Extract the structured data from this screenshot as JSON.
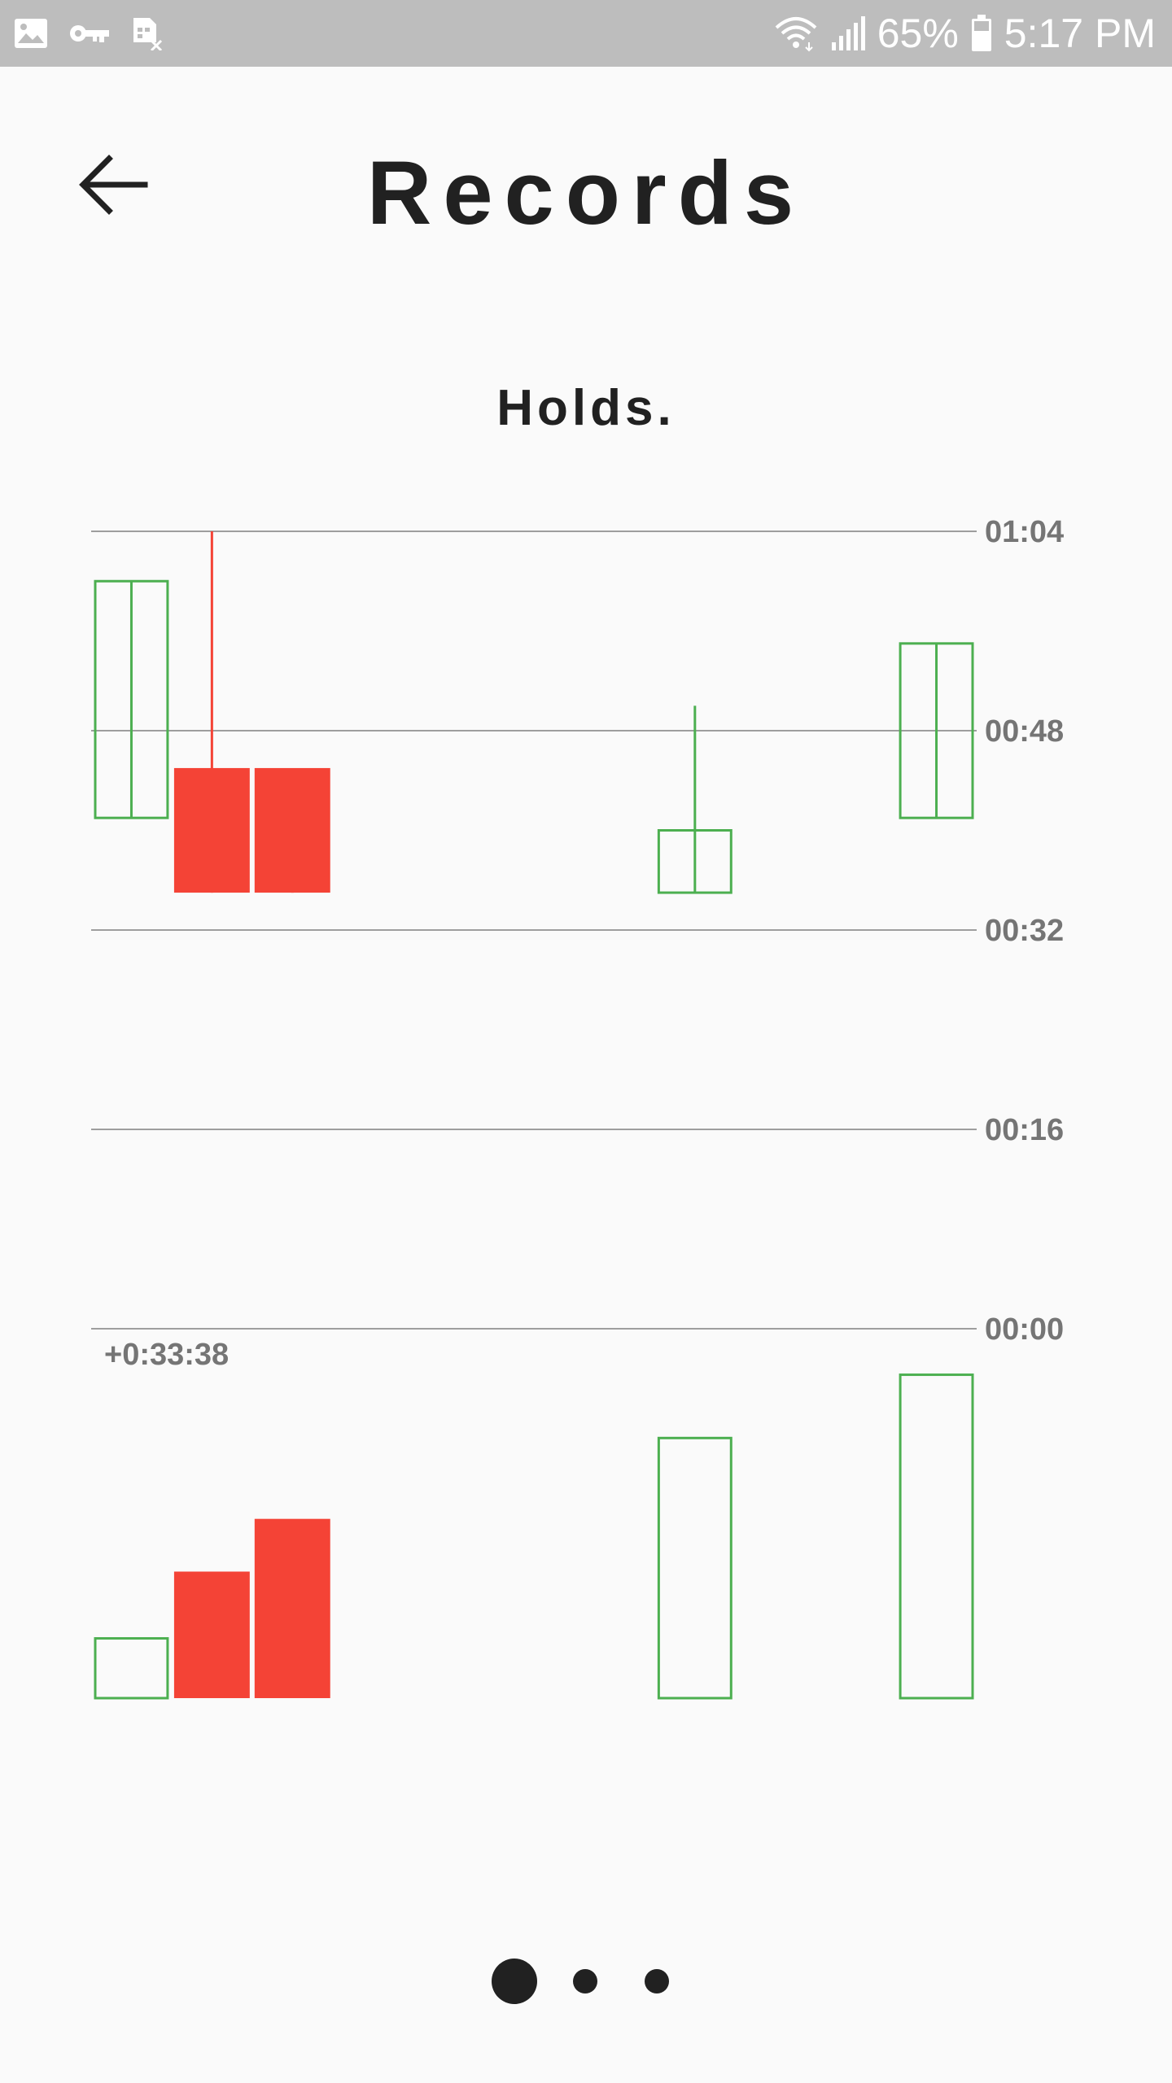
{
  "status_bar": {
    "battery": "65%",
    "time": "5:17 PM",
    "left_icons": [
      "image-icon",
      "key-icon",
      "sim-card-icon"
    ],
    "right_icons": [
      "wifi-icon",
      "signal-icon",
      "battery-icon"
    ]
  },
  "app_bar": {
    "back_icon": "arrow-back-icon",
    "title": "Records"
  },
  "chart_title": "Holds.",
  "colors": {
    "increase": "#4caf50",
    "decrease": "#f44336",
    "grid": "#9e9e9e",
    "axis_text": "#757575",
    "title_text": "#212121",
    "status_bar": "#bdbdbd"
  },
  "chart_data": {
    "type": "candlestick",
    "title": "Holds.",
    "y_axis": {
      "position": "right",
      "ticks": [
        "01:04",
        "00:48",
        "00:32",
        "00:16",
        "00:00"
      ],
      "tick_seconds": [
        64,
        48,
        32,
        16,
        0
      ],
      "ylim": [
        0,
        64
      ]
    },
    "grid": true,
    "candles": [
      {
        "slot": 0,
        "open": 41,
        "close": 60,
        "high": 60,
        "low": 41,
        "direction": "up"
      },
      {
        "slot": 1,
        "open": 45,
        "close": 35,
        "high": 64,
        "low": 35,
        "direction": "down"
      },
      {
        "slot": 2,
        "open": 45,
        "close": 35,
        "high": 45,
        "low": 35,
        "direction": "down"
      },
      {
        "slot": 7,
        "open": 35,
        "close": 40,
        "high": 50,
        "low": 35,
        "direction": "up"
      },
      {
        "slot": 10,
        "open": 41,
        "close": 55,
        "high": 55,
        "low": 41,
        "direction": "up"
      }
    ],
    "slots": 11,
    "lower_panel": {
      "label": "+0:33:38",
      "bars": [
        {
          "slot": 0,
          "value": 0.17,
          "direction": "up"
        },
        {
          "slot": 1,
          "value": 0.36,
          "direction": "down"
        },
        {
          "slot": 2,
          "value": 0.51,
          "direction": "down"
        },
        {
          "slot": 7,
          "value": 0.74,
          "direction": "up"
        },
        {
          "slot": 10,
          "value": 0.92,
          "direction": "up"
        }
      ]
    }
  },
  "pager": {
    "pages": 3,
    "active": 0
  }
}
